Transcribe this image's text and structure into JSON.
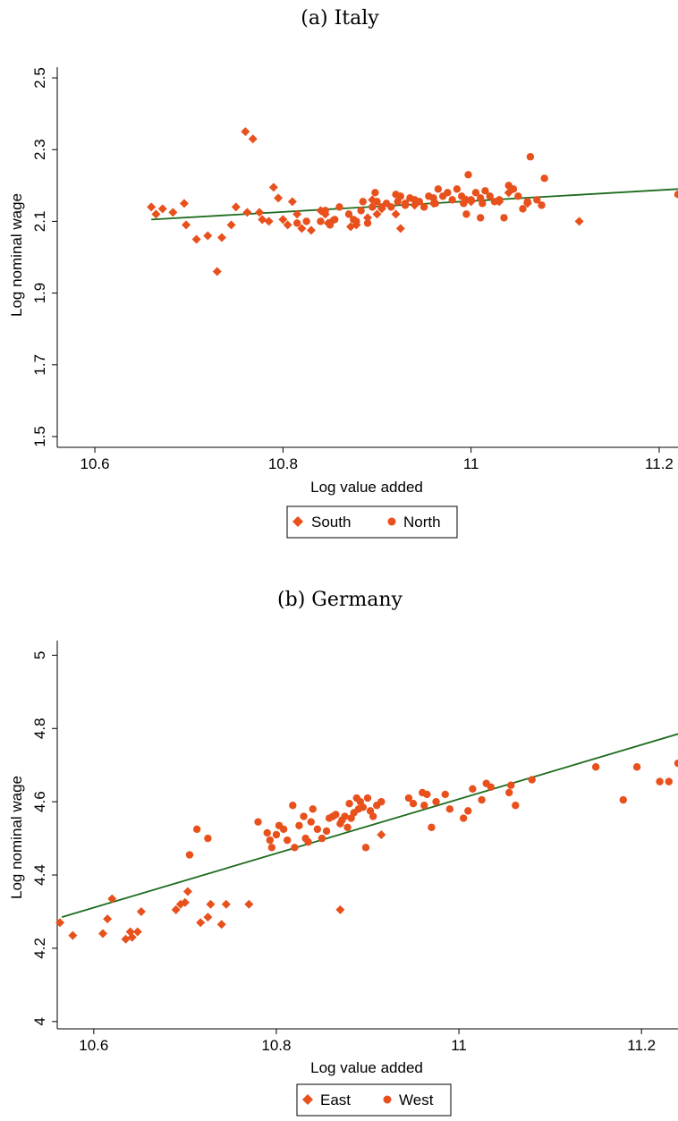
{
  "colors": {
    "marker": "#e8501c",
    "fit_line": "#1e6b1e",
    "axis": "#000000"
  },
  "chart_data": [
    {
      "type": "scatter",
      "title": "(a) Italy",
      "xlabel": "Log value added",
      "ylabel": "Log nominal wage",
      "xlim": [
        10.56,
        11.22
      ],
      "ylim": [
        1.47,
        2.53
      ],
      "xticks": [
        10.6,
        10.8,
        11,
        11.2
      ],
      "xtick_labels": [
        "10.6",
        "10.8",
        "11",
        "11.2"
      ],
      "yticks": [
        1.5,
        1.7,
        1.9,
        2.1,
        2.3,
        2.5
      ],
      "ytick_labels": [
        "1.5",
        "1.7",
        "1.9",
        "2.1",
        "2.3",
        "2.5"
      ],
      "legend_position": "bottom-center",
      "fit_line": {
        "x": [
          10.66,
          11.22
        ],
        "y": [
          2.105,
          2.19
        ]
      },
      "series": [
        {
          "name": "South",
          "marker": "diamond",
          "points": [
            [
              10.66,
              2.14
            ],
            [
              10.665,
              2.12
            ],
            [
              10.672,
              2.135
            ],
            [
              10.683,
              2.125
            ],
            [
              10.695,
              2.15
            ],
            [
              10.697,
              2.09
            ],
            [
              10.708,
              2.05
            ],
            [
              10.72,
              2.06
            ],
            [
              10.73,
              1.96
            ],
            [
              10.735,
              2.055
            ],
            [
              10.745,
              2.09
            ],
            [
              10.75,
              2.14
            ],
            [
              10.76,
              2.35
            ],
            [
              10.762,
              2.125
            ],
            [
              10.768,
              2.33
            ],
            [
              10.775,
              2.125
            ],
            [
              10.778,
              2.105
            ],
            [
              10.785,
              2.1
            ],
            [
              10.79,
              2.195
            ],
            [
              10.795,
              2.165
            ],
            [
              10.8,
              2.105
            ],
            [
              10.805,
              2.09
            ],
            [
              10.81,
              2.155
            ],
            [
              10.815,
              2.12
            ],
            [
              10.82,
              2.08
            ],
            [
              10.83,
              2.075
            ],
            [
              10.84,
              2.13
            ],
            [
              10.845,
              2.12
            ],
            [
              10.848,
              2.095
            ],
            [
              10.852,
              2.1
            ],
            [
              10.872,
              2.085
            ],
            [
              10.878,
              2.09
            ],
            [
              10.89,
              2.11
            ],
            [
              10.895,
              2.16
            ],
            [
              10.9,
              2.12
            ],
            [
              10.905,
              2.135
            ],
            [
              10.92,
              2.12
            ],
            [
              10.925,
              2.08
            ],
            [
              10.94,
              2.145
            ],
            [
              10.96,
              2.15
            ],
            [
              10.995,
              2.16
            ],
            [
              11.0,
              2.155
            ],
            [
              11.03,
              2.155
            ],
            [
              11.04,
              2.18
            ],
            [
              11.06,
              2.15
            ],
            [
              11.115,
              2.1
            ]
          ]
        },
        {
          "name": "North",
          "marker": "circle",
          "points": [
            [
              10.815,
              2.095
            ],
            [
              10.825,
              2.1
            ],
            [
              10.84,
              2.1
            ],
            [
              10.845,
              2.13
            ],
            [
              10.85,
              2.09
            ],
            [
              10.855,
              2.105
            ],
            [
              10.86,
              2.14
            ],
            [
              10.87,
              2.12
            ],
            [
              10.875,
              2.105
            ],
            [
              10.878,
              2.1
            ],
            [
              10.883,
              2.13
            ],
            [
              10.885,
              2.155
            ],
            [
              10.89,
              2.095
            ],
            [
              10.895,
              2.14
            ],
            [
              10.898,
              2.18
            ],
            [
              10.9,
              2.155
            ],
            [
              10.905,
              2.14
            ],
            [
              10.91,
              2.15
            ],
            [
              10.915,
              2.14
            ],
            [
              10.92,
              2.175
            ],
            [
              10.922,
              2.155
            ],
            [
              10.925,
              2.17
            ],
            [
              10.93,
              2.145
            ],
            [
              10.935,
              2.165
            ],
            [
              10.94,
              2.16
            ],
            [
              10.945,
              2.155
            ],
            [
              10.95,
              2.14
            ],
            [
              10.955,
              2.17
            ],
            [
              10.96,
              2.165
            ],
            [
              10.962,
              2.15
            ],
            [
              10.965,
              2.19
            ],
            [
              10.97,
              2.17
            ],
            [
              10.975,
              2.18
            ],
            [
              10.98,
              2.16
            ],
            [
              10.985,
              2.19
            ],
            [
              10.99,
              2.17
            ],
            [
              10.992,
              2.15
            ],
            [
              10.995,
              2.12
            ],
            [
              10.997,
              2.23
            ],
            [
              11.0,
              2.16
            ],
            [
              11.005,
              2.18
            ],
            [
              11.01,
              2.165
            ],
            [
              11.012,
              2.15
            ],
            [
              11.015,
              2.185
            ],
            [
              11.02,
              2.17
            ],
            [
              11.025,
              2.155
            ],
            [
              11.03,
              2.16
            ],
            [
              11.035,
              2.11
            ],
            [
              11.04,
              2.2
            ],
            [
              11.045,
              2.19
            ],
            [
              11.05,
              2.17
            ],
            [
              11.055,
              2.135
            ],
            [
              11.06,
              2.155
            ],
            [
              11.063,
              2.28
            ],
            [
              11.07,
              2.16
            ],
            [
              11.075,
              2.145
            ],
            [
              11.078,
              2.22
            ],
            [
              11.22,
              2.175
            ],
            [
              11.01,
              2.11
            ],
            [
              10.93,
              2.15
            ]
          ]
        }
      ]
    },
    {
      "type": "scatter",
      "title": "(b) Germany",
      "xlabel": "Log value added",
      "ylabel": "Log nominal wage",
      "xlim": [
        10.56,
        11.24
      ],
      "ylim": [
        3.98,
        5.04
      ],
      "xticks": [
        10.6,
        10.8,
        11,
        11.2
      ],
      "xtick_labels": [
        "10.6",
        "10.8",
        "11",
        "11.2"
      ],
      "yticks": [
        4,
        4.2,
        4.4,
        4.6,
        4.8,
        5
      ],
      "ytick_labels": [
        "4",
        "4.2",
        "4.4",
        "4.6",
        "4.8",
        "5"
      ],
      "legend_position": "bottom-center",
      "fit_line": {
        "x": [
          10.565,
          11.24
        ],
        "y": [
          4.285,
          4.785
        ]
      },
      "series": [
        {
          "name": "East",
          "marker": "diamond",
          "points": [
            [
              10.563,
              4.27
            ],
            [
              10.577,
              4.235
            ],
            [
              10.61,
              4.24
            ],
            [
              10.615,
              4.28
            ],
            [
              10.62,
              4.335
            ],
            [
              10.635,
              4.225
            ],
            [
              10.64,
              4.245
            ],
            [
              10.642,
              4.23
            ],
            [
              10.648,
              4.245
            ],
            [
              10.652,
              4.3
            ],
            [
              10.69,
              4.305
            ],
            [
              10.695,
              4.32
            ],
            [
              10.7,
              4.325
            ],
            [
              10.703,
              4.355
            ],
            [
              10.717,
              4.27
            ],
            [
              10.725,
              4.285
            ],
            [
              10.728,
              4.32
            ],
            [
              10.74,
              4.265
            ],
            [
              10.745,
              4.32
            ],
            [
              10.77,
              4.32
            ],
            [
              10.87,
              4.305
            ],
            [
              10.915,
              4.51
            ]
          ]
        },
        {
          "name": "West",
          "marker": "circle",
          "points": [
            [
              10.705,
              4.455
            ],
            [
              10.713,
              4.525
            ],
            [
              10.725,
              4.5
            ],
            [
              10.78,
              4.545
            ],
            [
              10.79,
              4.515
            ],
            [
              10.793,
              4.495
            ],
            [
              10.795,
              4.475
            ],
            [
              10.8,
              4.51
            ],
            [
              10.803,
              4.535
            ],
            [
              10.808,
              4.525
            ],
            [
              10.812,
              4.495
            ],
            [
              10.818,
              4.59
            ],
            [
              10.82,
              4.475
            ],
            [
              10.825,
              4.535
            ],
            [
              10.83,
              4.56
            ],
            [
              10.832,
              4.5
            ],
            [
              10.835,
              4.49
            ],
            [
              10.838,
              4.545
            ],
            [
              10.84,
              4.58
            ],
            [
              10.845,
              4.525
            ],
            [
              10.85,
              4.5
            ],
            [
              10.855,
              4.52
            ],
            [
              10.858,
              4.555
            ],
            [
              10.862,
              4.56
            ],
            [
              10.865,
              4.565
            ],
            [
              10.87,
              4.54
            ],
            [
              10.872,
              4.55
            ],
            [
              10.875,
              4.56
            ],
            [
              10.878,
              4.53
            ],
            [
              10.88,
              4.595
            ],
            [
              10.882,
              4.555
            ],
            [
              10.885,
              4.57
            ],
            [
              10.888,
              4.61
            ],
            [
              10.89,
              4.58
            ],
            [
              10.892,
              4.6
            ],
            [
              10.895,
              4.585
            ],
            [
              10.898,
              4.475
            ],
            [
              10.9,
              4.61
            ],
            [
              10.903,
              4.575
            ],
            [
              10.906,
              4.56
            ],
            [
              10.91,
              4.59
            ],
            [
              10.915,
              4.6
            ],
            [
              10.945,
              4.61
            ],
            [
              10.95,
              4.595
            ],
            [
              10.96,
              4.625
            ],
            [
              10.962,
              4.59
            ],
            [
              10.965,
              4.62
            ],
            [
              10.97,
              4.53
            ],
            [
              10.975,
              4.6
            ],
            [
              10.985,
              4.62
            ],
            [
              10.99,
              4.58
            ],
            [
              11.005,
              4.555
            ],
            [
              11.01,
              4.575
            ],
            [
              11.015,
              4.635
            ],
            [
              11.025,
              4.605
            ],
            [
              11.03,
              4.65
            ],
            [
              11.035,
              4.64
            ],
            [
              11.055,
              4.625
            ],
            [
              11.057,
              4.645
            ],
            [
              11.062,
              4.59
            ],
            [
              11.08,
              4.66
            ],
            [
              11.15,
              4.695
            ],
            [
              11.18,
              4.605
            ],
            [
              11.195,
              4.695
            ],
            [
              11.22,
              4.655
            ],
            [
              11.23,
              4.655
            ],
            [
              11.24,
              4.705
            ]
          ]
        }
      ]
    }
  ]
}
